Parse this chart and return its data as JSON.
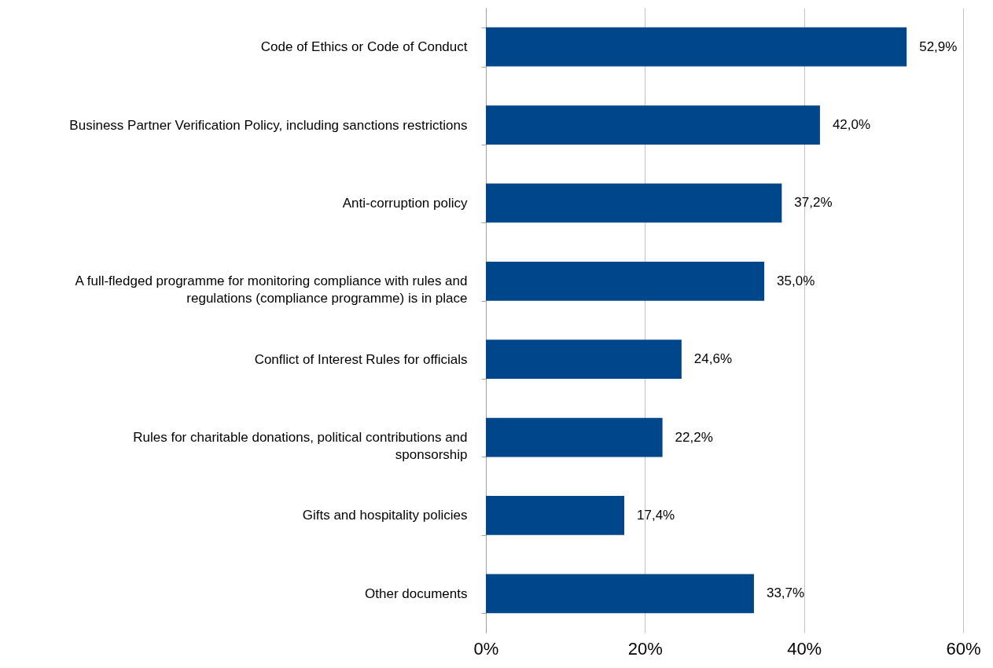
{
  "chart_data": {
    "type": "bar",
    "orientation": "horizontal",
    "categories": [
      "Code of Ethics or Code of Conduct",
      "Business Partner Verification Policy, including sanctions restrictions",
      "Anti-corruption policy",
      "A full-fledged programme for monitoring compliance with rules and\nregulations (compliance programme) is in place",
      "Conflict of Interest Rules for officials",
      "Rules for charitable donations, political contributions and\nsponsorship",
      "Gifts and hospitality policies",
      "Other documents"
    ],
    "values": [
      52.9,
      42.0,
      37.2,
      35.0,
      24.6,
      22.2,
      17.4,
      33.7
    ],
    "value_labels": [
      "52,9%",
      "42,0%",
      "37,2%",
      "35,0%",
      "24,6%",
      "22,2%",
      "17,4%",
      "33,7%"
    ],
    "color": "#00468b",
    "xlim": [
      0,
      60
    ],
    "xticks": [
      {
        "value": 0,
        "label": "0%"
      },
      {
        "value": 20,
        "label": "20%"
      },
      {
        "value": 40,
        "label": "40%"
      },
      {
        "value": 60,
        "label": "60%"
      }
    ],
    "grid": "x"
  }
}
